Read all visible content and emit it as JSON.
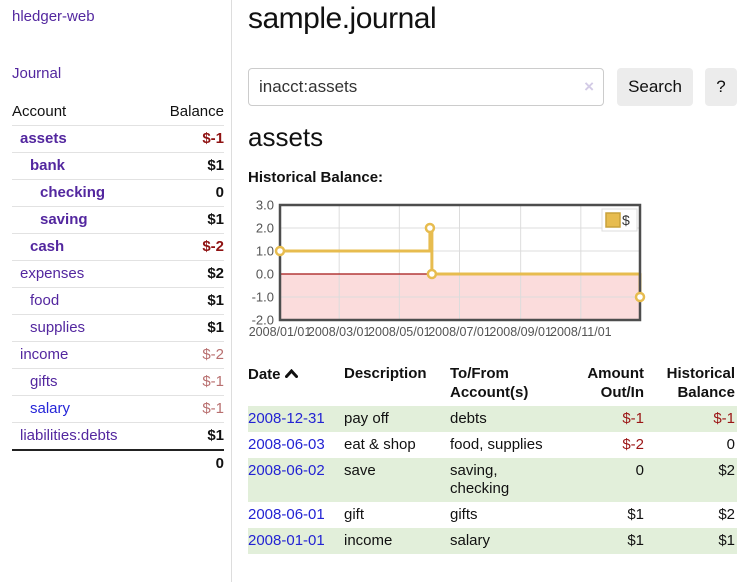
{
  "app": {
    "brand": "hledger-web",
    "nav_journal": "Journal"
  },
  "theme": {
    "link_purple": "#53279f",
    "link_blue": "#2323d3",
    "negative_red": "#9b1515",
    "negative_soft_rose": "#b86f6f",
    "row_green": "#e2efda",
    "button_gray": "#ececec"
  },
  "sidebar": {
    "header": {
      "account": "Account",
      "balance": "Balance"
    },
    "accounts": [
      {
        "name": "assets",
        "depth": 1,
        "bold": true,
        "balance": "$-1",
        "neg": "strong"
      },
      {
        "name": "bank",
        "depth": 2,
        "bold": true,
        "balance": "$1",
        "neg": "none"
      },
      {
        "name": "checking",
        "depth": 3,
        "bold": true,
        "balance": "0",
        "neg": "none"
      },
      {
        "name": "saving",
        "depth": 3,
        "bold": true,
        "balance": "$1",
        "neg": "none"
      },
      {
        "name": "cash",
        "depth": 2,
        "bold": true,
        "balance": "$-2",
        "neg": "strong"
      },
      {
        "name": "expenses",
        "depth": 1,
        "bold": false,
        "balance": "$2",
        "neg": "none"
      },
      {
        "name": "food",
        "depth": 2,
        "bold": false,
        "balance": "$1",
        "neg": "none"
      },
      {
        "name": "supplies",
        "depth": 2,
        "bold": false,
        "balance": "$1",
        "neg": "none"
      },
      {
        "name": "income",
        "depth": 1,
        "bold": false,
        "balance": "$-2",
        "neg": "soft"
      },
      {
        "name": "gifts",
        "depth": 2,
        "bold": false,
        "balance": "$-1",
        "neg": "soft"
      },
      {
        "name": "salary",
        "depth": 2,
        "bold": false,
        "balance": "$-1",
        "neg": "soft",
        "link_color": "blue"
      },
      {
        "name": "liabilities:debts",
        "depth": 1,
        "bold": false,
        "balance": "$1",
        "neg": "none"
      }
    ],
    "total": "0"
  },
  "header": {
    "title": "sample.journal"
  },
  "search": {
    "value": "inacct:assets",
    "clear_icon": "×",
    "button_label": "Search",
    "help_label": "?"
  },
  "account_page": {
    "title": "assets",
    "chart_label": "Historical Balance:"
  },
  "chart_data": {
    "type": "line",
    "style": "step",
    "title": "Historical Balance",
    "series": [
      {
        "name": "$",
        "points": [
          [
            "2008-01-01",
            1.0
          ],
          [
            "2008-06-01",
            2.0
          ],
          [
            "2008-06-03",
            0.0
          ],
          [
            "2008-12-31",
            -1.0
          ]
        ]
      }
    ],
    "ylim": [
      -2.0,
      3.0
    ],
    "yticks": [
      "3.0",
      "2.0",
      "1.0",
      "0.0",
      "-1.0",
      "-2.0"
    ],
    "xticks": [
      "2008/01/01",
      "2008/03/01",
      "2008/05/01",
      "2008/07/01",
      "2008/09/01",
      "2008/11/01"
    ],
    "xtick_days": [
      0,
      60,
      121,
      182,
      244,
      305
    ],
    "x_start": "2008-01-01",
    "x_range_days": 365,
    "grid": true,
    "legend_position": "top-right",
    "colors": {
      "line": "#e7bc4f",
      "marker_ring": "#e7bc4f",
      "marker_fill": "#ffffff",
      "negative_region": "#fbdcdc",
      "zero_line": "#a51515",
      "grid": "#dcdcdc",
      "plot_border": "#4d4d4d",
      "axis_text": "#545454",
      "legend_square": "#e7bc4f",
      "legend_square_border": "#c9a23c"
    }
  },
  "register": {
    "columns": [
      {
        "label": "Date",
        "sorted": "ascending"
      },
      {
        "label": "Description"
      },
      {
        "label": "To/From\nAccount(s)"
      },
      {
        "label": "Amount\nOut/In"
      },
      {
        "label": "Historical\nBalance"
      }
    ],
    "rows": [
      {
        "date": "2008-12-31",
        "description": "pay off",
        "accounts": "debts",
        "amount": "$-1",
        "amount_neg": true,
        "balance": "$-1",
        "balance_neg": true,
        "shaded": true
      },
      {
        "date": "2008-06-03",
        "description": "eat & shop",
        "accounts": "food, supplies",
        "amount": "$-2",
        "amount_neg": true,
        "balance": "0",
        "balance_neg": false,
        "shaded": false
      },
      {
        "date": "2008-06-02",
        "description": "save",
        "accounts": "saving,\nchecking",
        "amount": "0",
        "amount_neg": false,
        "balance": "$2",
        "balance_neg": false,
        "shaded": true
      },
      {
        "date": "2008-06-01",
        "description": "gift",
        "accounts": "gifts",
        "amount": "$1",
        "amount_neg": false,
        "balance": "$2",
        "balance_neg": false,
        "shaded": false
      },
      {
        "date": "2008-01-01",
        "description": "income",
        "accounts": "salary",
        "amount": "$1",
        "amount_neg": false,
        "balance": "$1",
        "balance_neg": false,
        "shaded": true
      }
    ]
  }
}
